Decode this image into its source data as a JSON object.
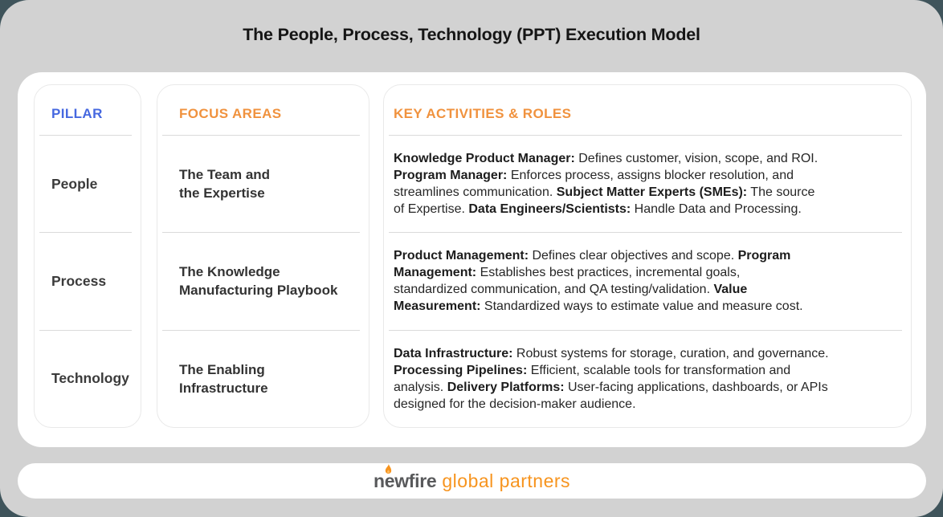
{
  "page": {
    "title": "The People, Process, Technology (PPT) Execution Model"
  },
  "colors": {
    "outer_background": "#3F545B",
    "canvas_background": "#D2D2D2",
    "panel_background": "#FFFFFF",
    "pillar_header_blue": "#4668E0",
    "accent_orange": "#F0923E",
    "body_text": "#262626",
    "divider_gray": "#DBDBDB",
    "logo_gray": "#58595B",
    "logo_orange": "#F7941E"
  },
  "table": {
    "columns": [
      {
        "id": "pillar",
        "header": "PILLAR"
      },
      {
        "id": "focus",
        "header": "FOCUS AREAS"
      },
      {
        "id": "activities",
        "header": "KEY ACTIVITIES & ROLES"
      }
    ],
    "rows": [
      {
        "pillar": "People",
        "focus": "The Team and\nthe Expertise",
        "activities": [
          {
            "bold": "Knowledge Product Manager:",
            "text": " Defines customer, vision, scope, and ROI.\n"
          },
          {
            "bold": "Program Manager:",
            "text": " Enforces process, assigns blocker resolution, and\nstreamlines communication. "
          },
          {
            "bold": "Subject Matter Experts (SMEs):",
            "text": " The source\nof Expertise. "
          },
          {
            "bold": "Data Engineers/Scientists:",
            "text": " Handle Data and Processing."
          }
        ]
      },
      {
        "pillar": "Process",
        "focus": "The Knowledge\nManufacturing Playbook",
        "activities": [
          {
            "bold": "Product Management:",
            "text": " Defines clear objectives and scope. "
          },
          {
            "bold": "Program\nManagement:",
            "text": " Establishes best practices, incremental goals,\nstandardized communication, and QA testing/validation. "
          },
          {
            "bold": "Value\nMeasurement:",
            "text": " Standardized ways to estimate value and measure cost."
          }
        ]
      },
      {
        "pillar": "Technology",
        "focus": "The Enabling\nInfrastructure",
        "activities": [
          {
            "bold": "Data Infrastructure:",
            "text": " Robust systems for storage, curation, and governance.\n"
          },
          {
            "bold": "Processing Pipelines:",
            "text": " Efficient, scalable tools for transformation and\nanalysis. "
          },
          {
            "bold": "Delivery Platforms:",
            "text": " User-facing applications, dashboards, or APIs\ndesigned for the decision-maker audience."
          }
        ]
      }
    ]
  },
  "footer": {
    "logo_primary": "newfire",
    "logo_secondary": "global partners"
  }
}
